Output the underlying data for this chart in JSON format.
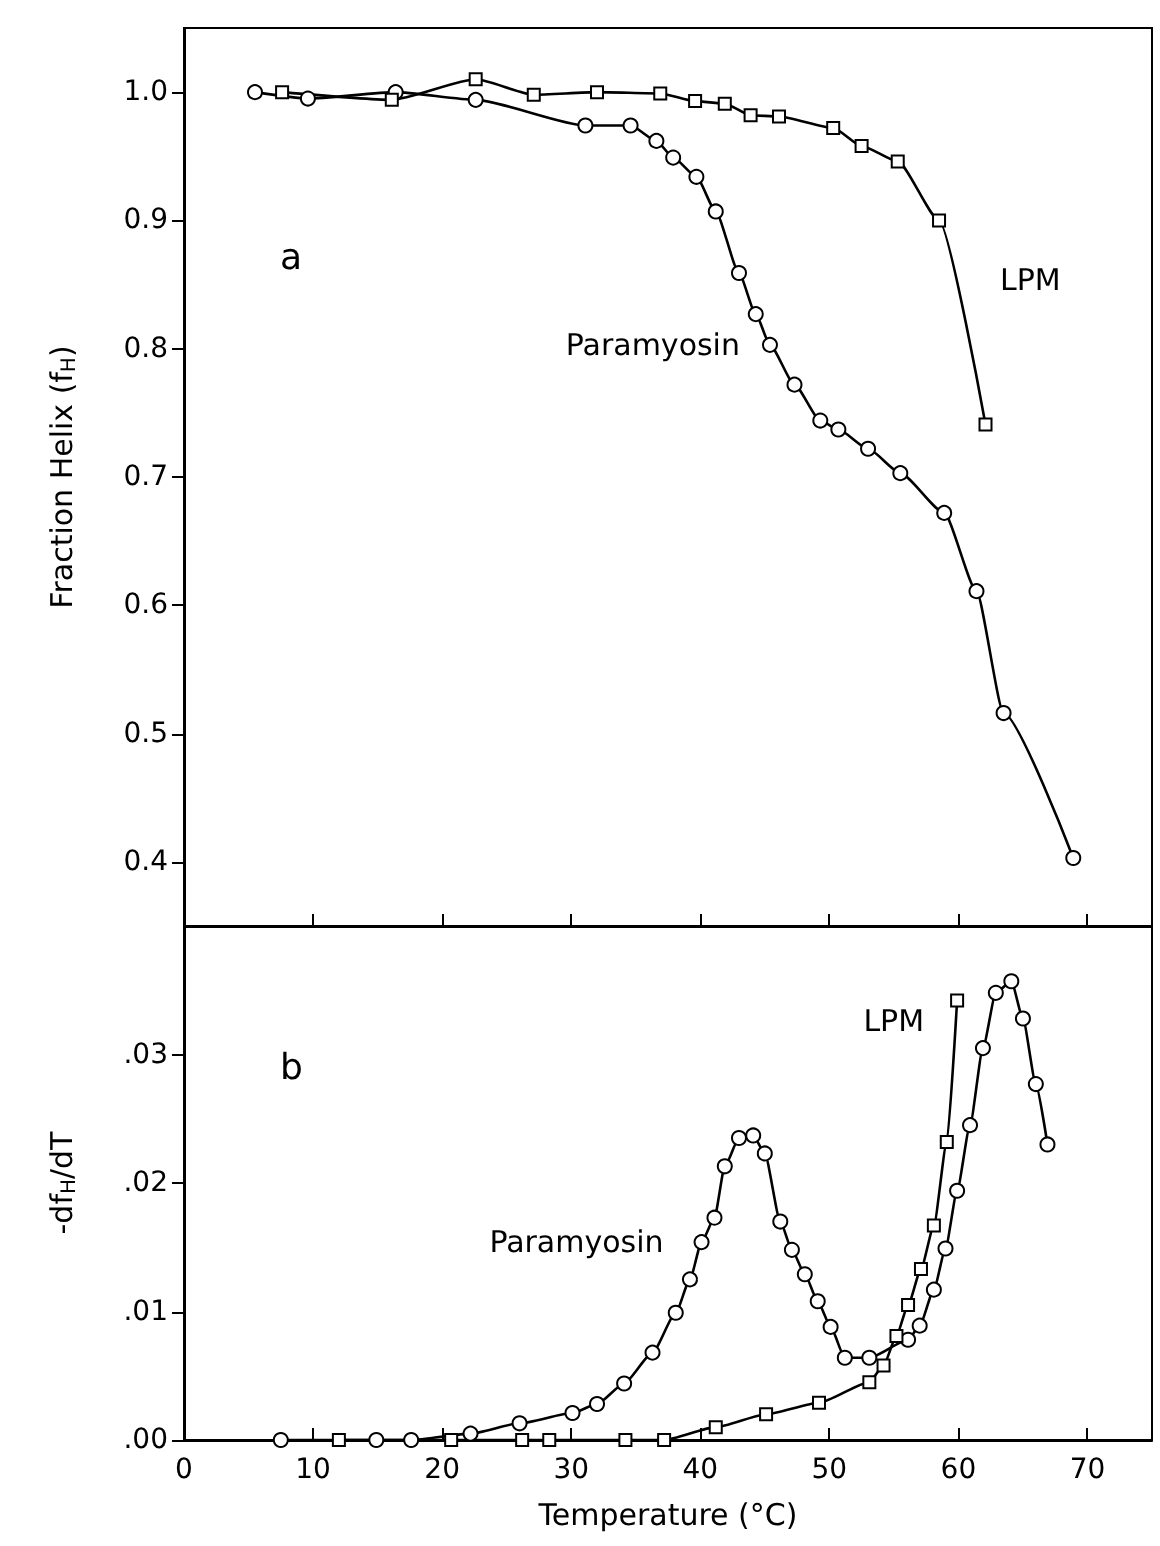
{
  "chart_data": [
    {
      "type": "line",
      "ylabel": "Fraction Helix (f$_{H}$)",
      "xlim": [
        0,
        75
      ],
      "xticks": [
        0,
        10,
        20,
        30,
        40,
        50,
        60,
        70
      ],
      "ylim": [
        0.35,
        1.05
      ],
      "yticks": [
        {
          "value": 1.0,
          "label": "1.0"
        },
        0.9,
        0.8,
        0.7,
        0.6,
        0.5,
        0.4
      ],
      "tick_labels": "y",
      "grid": false,
      "legend": false,
      "annotations": [
        "a"
      ],
      "series": [
        {
          "name": "Paramyosin",
          "color": "#000000",
          "marker": "circle",
          "x": [
            5.5,
            9.6,
            16.4,
            22.6,
            31.1,
            34.6,
            36.6,
            37.9,
            39.7,
            41.2,
            43.0,
            44.3,
            45.4,
            47.3,
            49.3,
            50.7,
            53.0,
            55.5,
            58.9,
            61.4,
            63.5,
            68.9
          ],
          "values": [
            1.0,
            0.995,
            1.0,
            0.994,
            0.974,
            0.974,
            0.962,
            0.949,
            0.934,
            0.907,
            0.859,
            0.827,
            0.803,
            0.772,
            0.744,
            0.737,
            0.722,
            0.703,
            0.672,
            0.611,
            0.516,
            0.403
          ]
        },
        {
          "name": "LPM",
          "color": "#000000",
          "marker": "square",
          "x": [
            7.6,
            16.1,
            22.6,
            27.1,
            32.0,
            36.9,
            39.6,
            41.9,
            43.9,
            46.1,
            50.3,
            52.5,
            55.3,
            58.5,
            62.1
          ],
          "values": [
            1.0,
            0.994,
            1.01,
            0.998,
            1.0,
            0.999,
            0.993,
            0.991,
            0.982,
            0.981,
            0.972,
            0.958,
            0.946,
            0.9,
            0.741
          ]
        }
      ]
    },
    {
      "type": "line",
      "xlabel": "Temperature (°C)",
      "ylabel": "-df$_{H}$/dT",
      "xlim": [
        0,
        75
      ],
      "xticks": [
        0,
        10,
        20,
        30,
        40,
        50,
        60,
        70
      ],
      "ylim": [
        0,
        0.04
      ],
      "yticks": [
        {
          "value": 0,
          "label": ".00"
        },
        {
          "value": 0.01,
          "label": ".01"
        },
        {
          "value": 0.02,
          "label": ".02"
        },
        {
          "value": 0.03,
          "label": ".03"
        }
      ],
      "grid": false,
      "legend": false,
      "annotations": [
        "b"
      ],
      "series": [
        {
          "name": "Paramyosin",
          "color": "#000000",
          "marker": "circle",
          "x": [
            7.5,
            14.9,
            17.6,
            22.2,
            26.0,
            30.1,
            32.0,
            34.1,
            36.3,
            38.1,
            39.2,
            40.1,
            41.1,
            41.9,
            43.0,
            44.1,
            45.0,
            46.2,
            47.1,
            48.1,
            49.1,
            50.1,
            51.2,
            53.1,
            56.1,
            57.0,
            58.1,
            59.0,
            59.9,
            60.9,
            61.9,
            62.9,
            64.1,
            65.0,
            66.0,
            66.9
          ],
          "values": [
            0,
            0,
            0,
            0.0005,
            0.0013,
            0.0021,
            0.0028,
            0.0044,
            0.0068,
            0.0099,
            0.0125,
            0.0154,
            0.0173,
            0.0213,
            0.0235,
            0.0237,
            0.0223,
            0.017,
            0.0148,
            0.0129,
            0.0108,
            0.0088,
            0.0064,
            0.0064,
            0.0078,
            0.0089,
            0.0117,
            0.0149,
            0.0194,
            0.0245,
            0.0305,
            0.0348,
            0.0357,
            0.0328,
            0.0277,
            0.023
          ]
        },
        {
          "name": "LPM",
          "color": "#000000",
          "marker": "square",
          "x": [
            12.0,
            20.7,
            26.2,
            28.3,
            34.2,
            37.2,
            41.2,
            45.1,
            49.2,
            53.1,
            54.2,
            55.2,
            56.1,
            57.1,
            58.1,
            59.1,
            59.9
          ],
          "values": [
            0,
            0,
            0,
            0,
            0,
            0,
            0.001,
            0.002,
            0.0029,
            0.0045,
            0.0058,
            0.0081,
            0.0105,
            0.0133,
            0.0167,
            0.0232,
            0.0342
          ]
        }
      ]
    }
  ]
}
